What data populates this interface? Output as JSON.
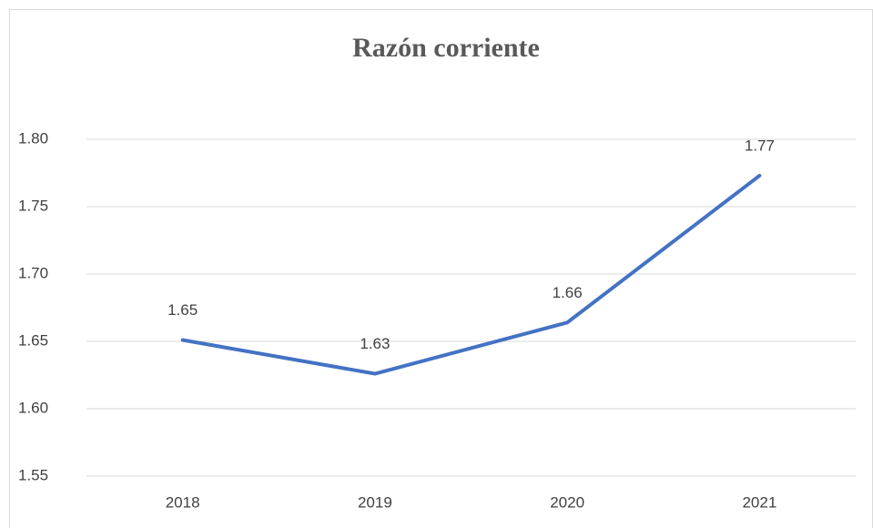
{
  "chart_data": {
    "type": "line",
    "title": "Razón corriente",
    "categories": [
      "2018",
      "2019",
      "2020",
      "2021"
    ],
    "series": [
      {
        "name": "Razón corriente",
        "color": "#4472c4",
        "values": [
          1.651,
          1.626,
          1.664,
          1.773
        ],
        "value_labels": [
          "1.65",
          "1.63",
          "1.66",
          "1.77"
        ]
      }
    ],
    "ylim": [
      1.55,
      1.8
    ],
    "yticks": [
      1.55,
      {
        "value": 1.6,
        "label": "1.60"
      },
      1.65,
      {
        "value": 1.7,
        "label": "1.70"
      },
      1.75,
      {
        "value": 1.8,
        "label": "1.80"
      }
    ],
    "grid": true
  }
}
